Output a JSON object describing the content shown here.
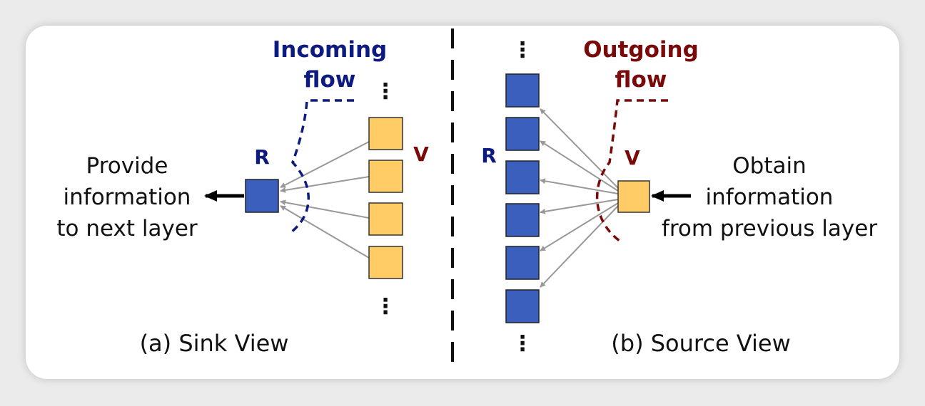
{
  "colors": {
    "blue_node": "#3a5fbd",
    "yellow_node": "#ffcc66",
    "incoming": "#0d1a80",
    "outgoing": "#7a0a0a",
    "edge": "#999999"
  },
  "sink": {
    "r_label": "R",
    "v_label": "V",
    "flow_line1": "Incoming",
    "flow_line2": "flow",
    "provide_line1": "Provide",
    "provide_line2": "information",
    "provide_line3": "to next layer",
    "caption": "(a) Sink View",
    "dots": "⋮"
  },
  "source": {
    "r_label": "R",
    "v_label": "V",
    "flow_line1": "Outgoing",
    "flow_line2": "flow",
    "obtain_line1": "Obtain",
    "obtain_line2": "information",
    "obtain_line3": "from previous layer",
    "caption": "(b) Source View",
    "dots": "⋮"
  }
}
